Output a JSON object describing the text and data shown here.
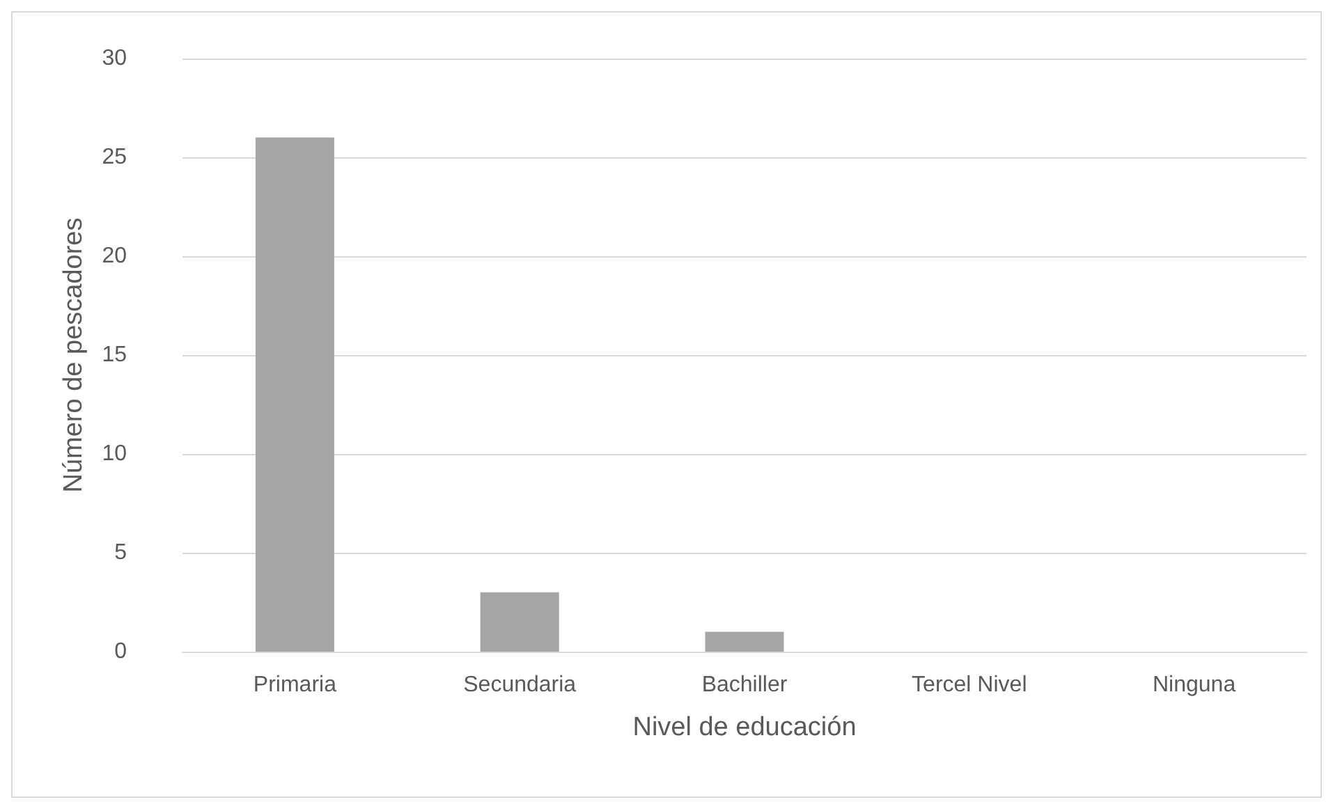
{
  "chart_data": {
    "type": "bar",
    "xlabel": "Nivel de educación",
    "ylabel": "Número de pescadores",
    "categories": [
      "Primaria",
      "Secundaria",
      "Bachiller",
      "Tercel Nivel",
      "Ninguna"
    ],
    "values": [
      26,
      3,
      1,
      0,
      0
    ],
    "color": "#a5a5a5",
    "ylim": [
      0,
      30
    ],
    "yticks": [
      0,
      5,
      10,
      15,
      20,
      25,
      30
    ],
    "grid": "y"
  }
}
